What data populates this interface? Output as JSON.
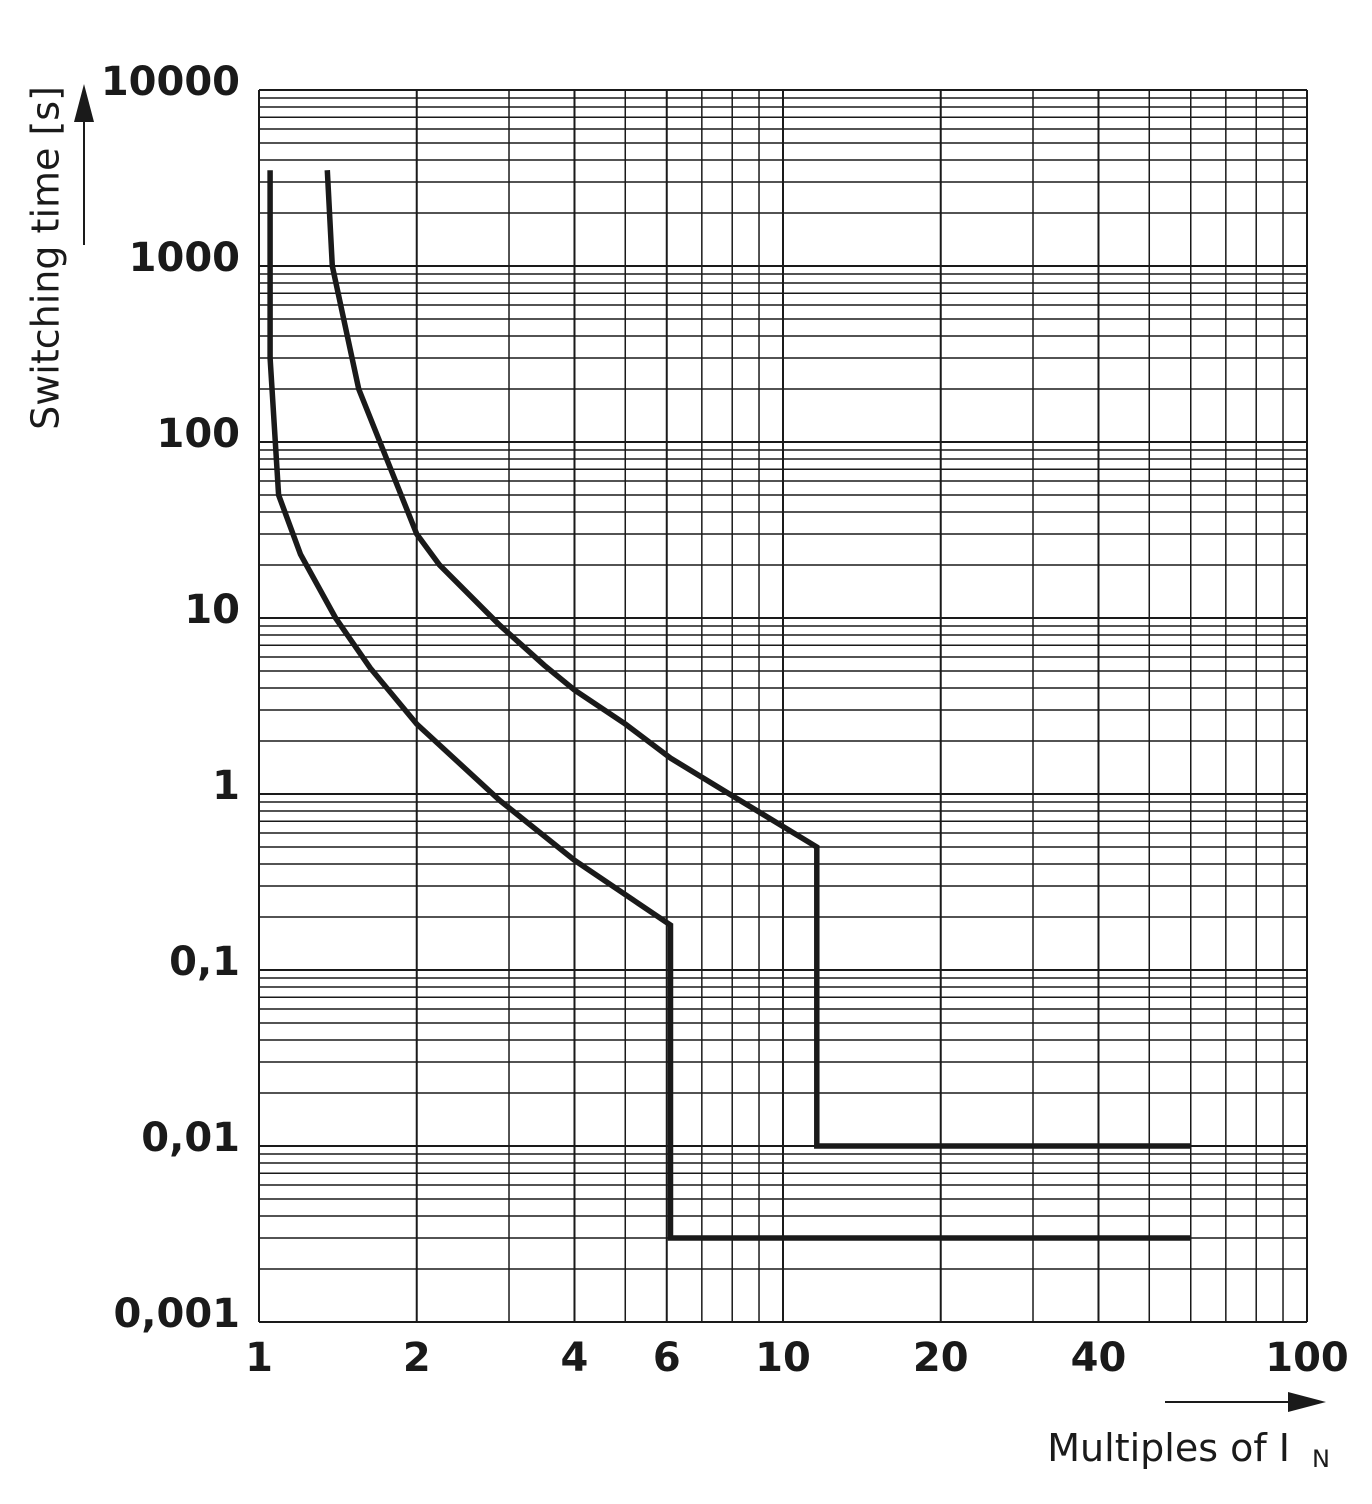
{
  "chart_data": {
    "type": "line",
    "y_label": "Switching time [s]",
    "x_label": "Multiples of I",
    "x_label_subscript": "N",
    "log_x": true,
    "log_y": true,
    "grid": true,
    "minor_grid": true,
    "xlim": [
      1,
      100
    ],
    "xticks": [
      1,
      2,
      4,
      6,
      10,
      20,
      40,
      100
    ],
    "ylim": [
      0.001,
      10000
    ],
    "yticks": [
      10000,
      1000,
      100,
      10,
      1,
      {
        "value": 0.1,
        "label": "0,1"
      },
      {
        "value": 0.01,
        "label": "0,01"
      },
      {
        "value": 0.001,
        "label": "0,001"
      }
    ],
    "series": [
      {
        "color": "#1a1a1a",
        "x": [
          1.05,
          1.05,
          1.09,
          1.2,
          1.4,
          1.63,
          2,
          2.88,
          4,
          6.1,
          6.1,
          60
        ],
        "values": [
          3500,
          300,
          50,
          23,
          10,
          5.2,
          2.5,
          0.92,
          0.42,
          0.18,
          0.003,
          0.003
        ]
      },
      {
        "color": "#1a1a1a",
        "x": [
          1.35,
          1.38,
          1.55,
          2,
          2.21,
          2.88,
          3.5,
          4,
          5,
          6.1,
          7.9,
          11.6,
          11.6,
          60
        ],
        "values": [
          3500,
          1000,
          200,
          30,
          20,
          9.1,
          5.4,
          3.9,
          2.5,
          1.6,
          1,
          0.5,
          0.01,
          0.01
        ]
      }
    ]
  }
}
